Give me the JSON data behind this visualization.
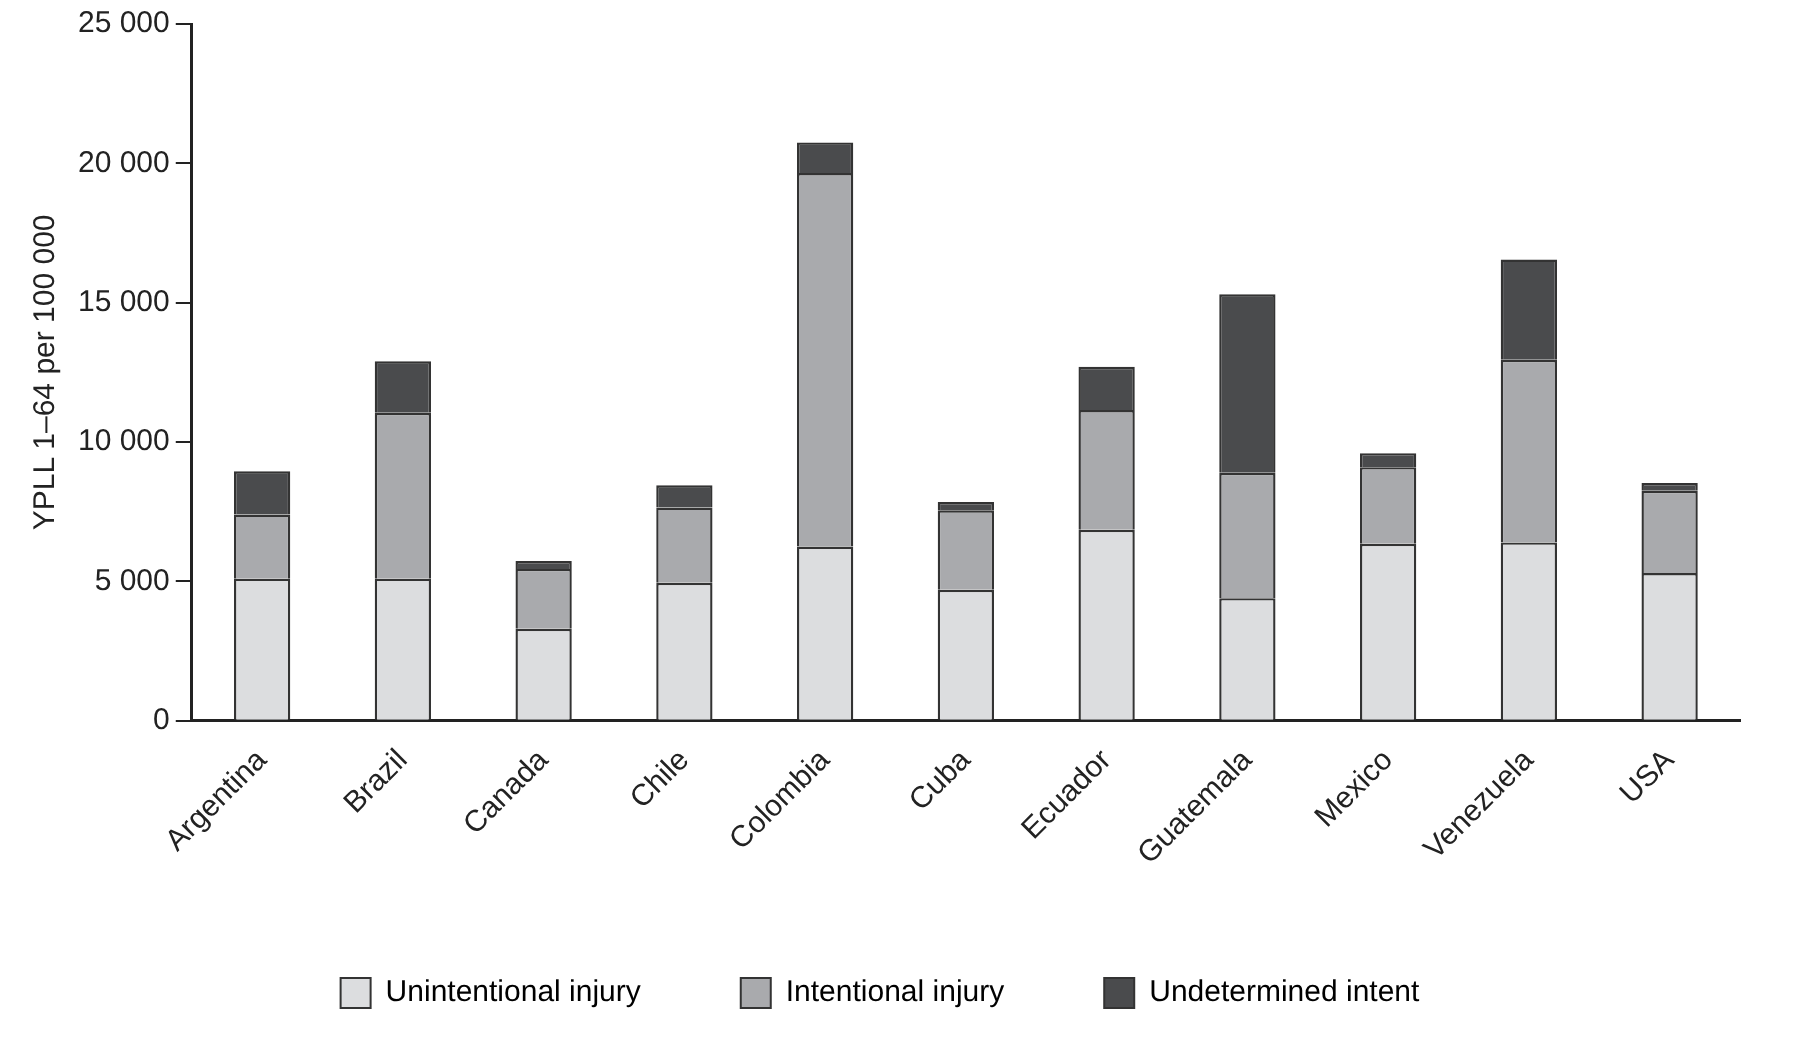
{
  "chart_data": {
    "type": "bar",
    "stacked": true,
    "ylabel": "YPLL 1–64 per 100 000",
    "categories": [
      "Argentina",
      "Brazil",
      "Canada",
      "Chile",
      "Colombia",
      "Cuba",
      "Ecuador",
      "Guatemala",
      "Mexico",
      "Venezuela",
      "USA"
    ],
    "series": [
      {
        "name": "Unintentional injury",
        "color": "#dcdddf",
        "values": [
          5100,
          5100,
          3300,
          4950,
          6250,
          4700,
          6850,
          4400,
          6350,
          6400,
          5300
        ]
      },
      {
        "name": "Intentional injury",
        "color": "#a9aaad",
        "values": [
          2300,
          5950,
          2150,
          2700,
          13400,
          2850,
          4300,
          4500,
          2750,
          6550,
          2950
        ]
      },
      {
        "name": "Undetermined intent",
        "color": "#4a4b4d",
        "values": [
          1550,
          1850,
          280,
          800,
          1100,
          300,
          1550,
          6400,
          500,
          3600,
          280
        ]
      }
    ],
    "ylim": [
      0,
      25000
    ],
    "yticks": [
      {
        "value": 0,
        "label": "0"
      },
      {
        "value": 5000,
        "label": "5 000"
      },
      {
        "value": 10000,
        "label": "10 000"
      },
      {
        "value": 15000,
        "label": "15 000"
      },
      {
        "value": 20000,
        "label": "20 000"
      },
      {
        "value": 25000,
        "label": "25 000"
      }
    ],
    "grid": false,
    "legend": "bottom"
  }
}
